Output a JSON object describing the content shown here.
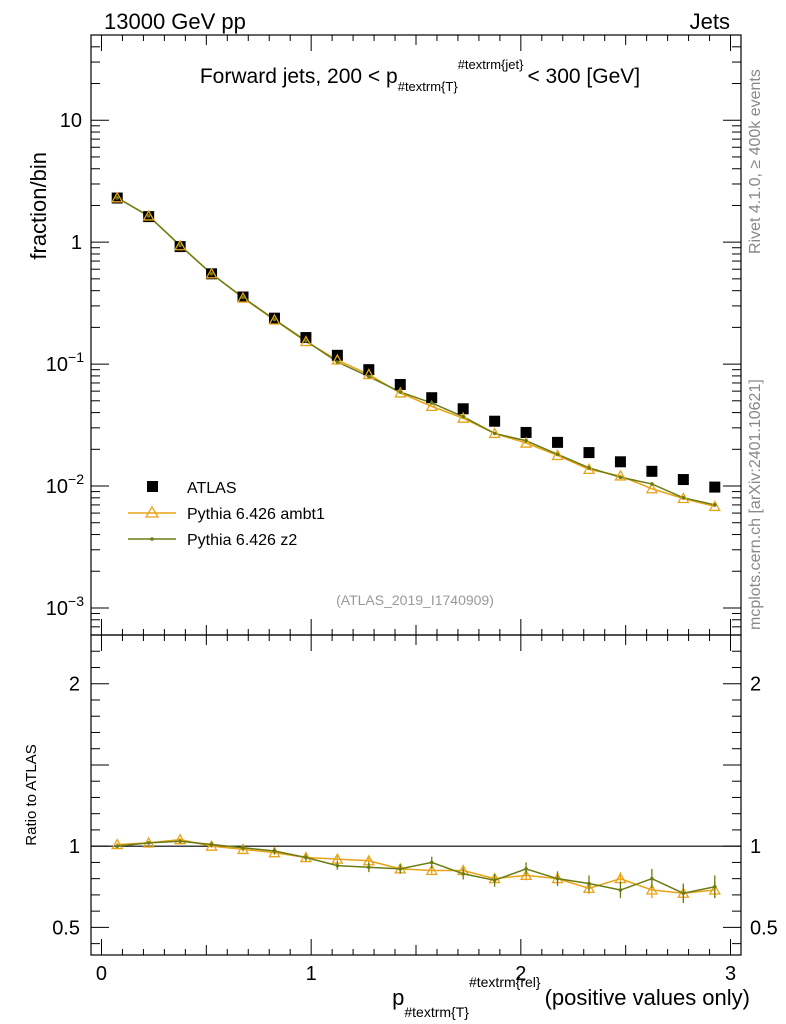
{
  "header": {
    "left": "13000 GeV pp",
    "right": "Jets"
  },
  "side_labels": {
    "rivet": "Rivet 4.1.0, ≥ 400k events",
    "mcplots": "mcplots.cern.ch [arXiv:2401.10621]"
  },
  "chart_data": {
    "type": "scatter",
    "title": {
      "prefix": "Forward jets, 200 < p",
      "sub": "#textrm{T}",
      "sup": "#textrm{jet}",
      "suffix": "< 300 [GeV]"
    },
    "analysis_id": "(ATLAS_2019_I1740909)",
    "ylabel": "fraction/bin",
    "ratio_ylabel": "Ratio to ATLAS",
    "xlabel": {
      "base": "p",
      "sub": "#textrm{T}",
      "sup": "#textrm{rel}",
      "suffix": "(positive values only)"
    },
    "xlim": [
      -0.05,
      3.05
    ],
    "ylim_log": [
      0.0006,
      50
    ],
    "ratio_ylim": [
      0.33,
      2.3
    ],
    "x_ticks": [
      "0",
      "1",
      "2",
      "3"
    ],
    "y_ticks": [
      {
        "v": 10,
        "base": "10",
        "exp": ""
      },
      {
        "v": 1,
        "base": "1",
        "exp": ""
      },
      {
        "v": 0.1,
        "base": "10",
        "exp": "−1"
      },
      {
        "v": 0.01,
        "base": "10",
        "exp": "−2"
      },
      {
        "v": 0.001,
        "base": "10",
        "exp": "−3"
      }
    ],
    "ratio_ticks": [
      {
        "v": 2,
        "label": "2"
      },
      {
        "v": 1,
        "label": "1"
      },
      {
        "v": 0.5,
        "label": "0.5"
      }
    ],
    "x": [
      0.075,
      0.225,
      0.375,
      0.525,
      0.675,
      0.825,
      0.975,
      1.125,
      1.275,
      1.425,
      1.575,
      1.725,
      1.875,
      2.025,
      2.175,
      2.325,
      2.475,
      2.625,
      2.775,
      2.925
    ],
    "series": [
      {
        "name": "ATLAS",
        "color": "#000000",
        "values": [
          2.3,
          1.62,
          0.92,
          0.55,
          0.355,
          0.238,
          0.165,
          0.118,
          0.09,
          0.068,
          0.053,
          0.043,
          0.034,
          0.0275,
          0.0228,
          0.0188,
          0.0158,
          0.0132,
          0.0113,
          0.0098
        ]
      },
      {
        "name": "Pythia 6.426 ambt1",
        "color": "#e8a317",
        "values": [
          2.31,
          1.64,
          0.935,
          0.55,
          0.348,
          0.23,
          0.153,
          0.108,
          0.082,
          0.058,
          0.045,
          0.036,
          0.027,
          0.0225,
          0.0178,
          0.0137,
          0.0121,
          0.0095,
          0.0079,
          0.0068
        ],
        "ratio": [
          1.01,
          1.02,
          1.04,
          1.0,
          0.98,
          0.96,
          0.93,
          0.92,
          0.91,
          0.86,
          0.85,
          0.85,
          0.8,
          0.82,
          0.8,
          0.74,
          0.8,
          0.73,
          0.71,
          0.73
        ],
        "ratio_err": [
          0.01,
          0.01,
          0.01,
          0.01,
          0.015,
          0.015,
          0.02,
          0.02,
          0.02,
          0.025,
          0.025,
          0.03,
          0.03,
          0.03,
          0.035,
          0.035,
          0.04,
          0.05,
          0.05,
          0.05
        ]
      },
      {
        "name": "Pythia 6.426 z2",
        "color": "#6b7c12",
        "values": [
          2.31,
          1.64,
          0.94,
          0.55,
          0.352,
          0.232,
          0.155,
          0.104,
          0.079,
          0.059,
          0.048,
          0.037,
          0.027,
          0.0235,
          0.0182,
          0.0141,
          0.0118,
          0.0104,
          0.008,
          0.007
        ],
        "ratio": [
          1.0,
          1.02,
          1.03,
          1.01,
          0.99,
          0.97,
          0.93,
          0.88,
          0.87,
          0.86,
          0.9,
          0.83,
          0.79,
          0.86,
          0.8,
          0.77,
          0.73,
          0.8,
          0.71,
          0.75
        ],
        "ratio_err": [
          0.01,
          0.01,
          0.01,
          0.015,
          0.015,
          0.02,
          0.02,
          0.025,
          0.03,
          0.03,
          0.035,
          0.035,
          0.04,
          0.04,
          0.045,
          0.05,
          0.05,
          0.06,
          0.06,
          0.07
        ]
      }
    ]
  }
}
